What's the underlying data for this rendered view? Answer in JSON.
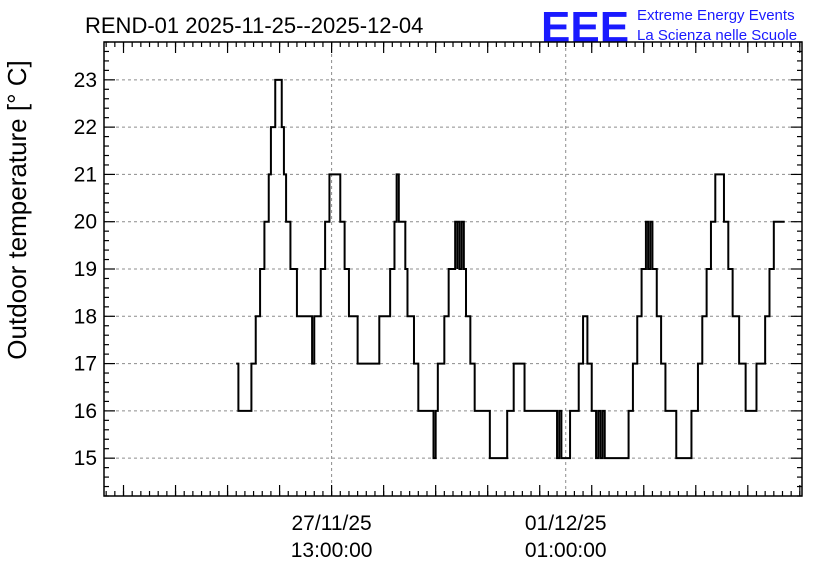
{
  "title": "REND-01 2025-11-25--2025-12-04",
  "logo": {
    "mark": "EEE",
    "line1": "Extreme Energy Events",
    "line2": "La Scienza nelle Scuole",
    "color": "#1a1aff"
  },
  "chart_data": {
    "type": "line",
    "line_style": "step",
    "title": "REND-01 2025-11-25--2025-12-04",
    "xlabel": "",
    "ylabel": "Outdoor temperature [° C]",
    "grid": true,
    "x_unit": "hours",
    "x_ticks": [
      {
        "x": 61,
        "line1": "27/11/25",
        "line2": "13:00:00"
      },
      {
        "x": 169,
        "line1": "01/12/25",
        "line2": "01:00:00"
      }
    ],
    "xlim": [
      -44,
      278
    ],
    "ylim": [
      14.2,
      23.8
    ],
    "y_ticks": [
      15,
      16,
      17,
      18,
      19,
      20,
      21,
      22,
      23
    ],
    "series": [
      {
        "name": "",
        "color": "#000000",
        "points": [
          [
            17,
            17
          ],
          [
            18,
            16
          ],
          [
            24,
            17
          ],
          [
            26,
            18
          ],
          [
            28,
            19
          ],
          [
            30,
            20
          ],
          [
            32,
            21
          ],
          [
            33,
            22
          ],
          [
            35,
            23
          ],
          [
            38,
            22
          ],
          [
            39,
            21
          ],
          [
            40,
            20
          ],
          [
            42,
            19
          ],
          [
            45,
            18
          ],
          [
            52,
            17
          ],
          [
            53,
            18
          ],
          [
            53,
            18
          ],
          [
            56,
            19
          ],
          [
            58,
            20
          ],
          [
            60,
            21
          ],
          [
            65,
            20
          ],
          [
            67,
            19
          ],
          [
            69,
            18
          ],
          [
            73,
            17
          ],
          [
            83,
            18
          ],
          [
            88,
            19
          ],
          [
            90,
            20
          ],
          [
            91,
            21
          ],
          [
            92,
            20
          ],
          [
            95,
            19
          ],
          [
            96,
            18
          ],
          [
            99,
            17
          ],
          [
            101,
            16
          ],
          [
            108,
            15
          ],
          [
            109,
            16
          ],
          [
            110,
            17
          ],
          [
            113,
            18
          ],
          [
            115,
            19
          ],
          [
            118,
            20
          ],
          [
            119,
            19
          ],
          [
            119,
            20
          ],
          [
            120,
            19
          ],
          [
            121,
            20
          ],
          [
            122,
            19
          ],
          [
            123,
            18
          ],
          [
            125,
            17
          ],
          [
            127,
            16
          ],
          [
            134,
            15
          ],
          [
            142,
            16
          ],
          [
            145,
            17
          ],
          [
            150,
            16
          ],
          [
            165,
            15
          ],
          [
            166,
            16
          ],
          [
            167,
            15
          ],
          [
            171,
            16
          ],
          [
            175,
            17
          ],
          [
            177,
            18
          ],
          [
            179,
            17
          ],
          [
            181,
            16
          ],
          [
            183,
            15
          ],
          [
            184,
            16
          ],
          [
            185,
            15
          ],
          [
            186,
            16
          ],
          [
            187,
            15
          ],
          [
            198,
            16
          ],
          [
            200,
            17
          ],
          [
            202,
            18
          ],
          [
            204,
            19
          ],
          [
            206,
            20
          ],
          [
            207,
            19
          ],
          [
            208,
            20
          ],
          [
            209,
            19
          ],
          [
            211,
            18
          ],
          [
            213,
            17
          ],
          [
            215,
            16
          ],
          [
            220,
            15
          ],
          [
            227,
            16
          ],
          [
            230,
            17
          ],
          [
            232,
            18
          ],
          [
            234,
            19
          ],
          [
            236,
            20
          ],
          [
            238,
            21
          ],
          [
            242,
            20
          ],
          [
            244,
            19
          ],
          [
            246,
            18
          ],
          [
            249,
            17
          ],
          [
            252,
            16
          ],
          [
            257,
            17
          ],
          [
            261,
            18
          ],
          [
            263,
            19
          ],
          [
            265,
            20
          ],
          [
            270,
            20
          ]
        ]
      }
    ]
  }
}
